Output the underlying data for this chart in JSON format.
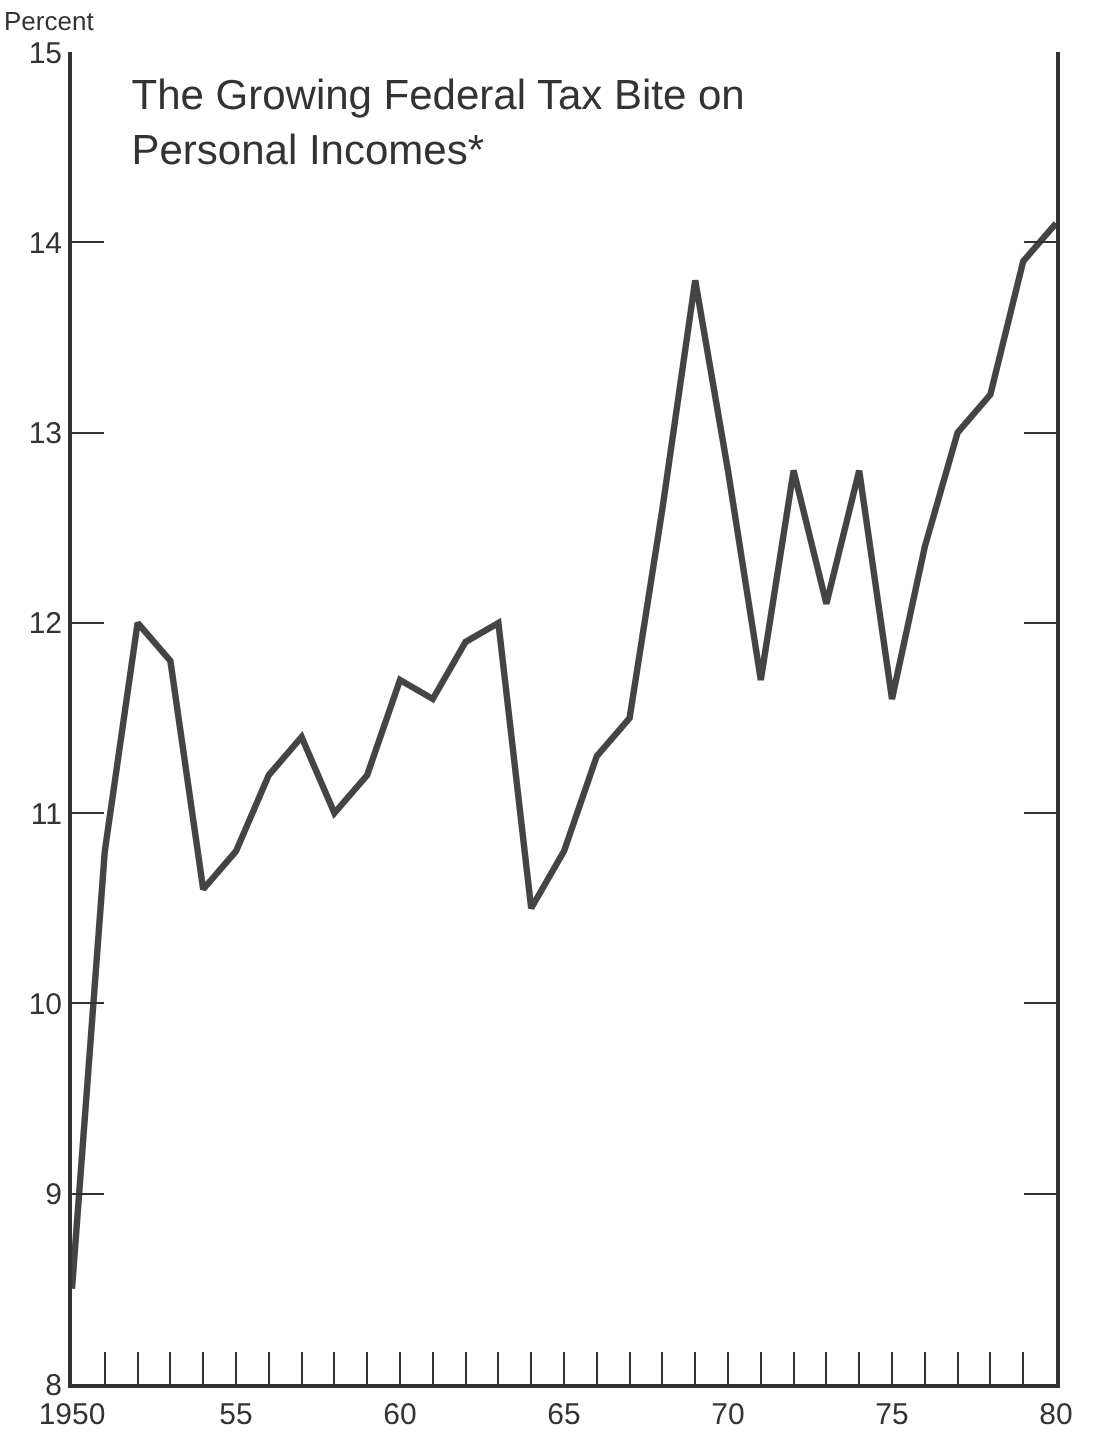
{
  "chart_data": {
    "type": "line",
    "title": "The Growing Federal Tax Bite on\nPersonal Incomes*",
    "ylabel": "Percent",
    "x": [
      1950,
      1951,
      1952,
      1953,
      1954,
      1955,
      1956,
      1957,
      1958,
      1959,
      1960,
      1961,
      1962,
      1963,
      1964,
      1965,
      1966,
      1967,
      1968,
      1969,
      1970,
      1971,
      1972,
      1973,
      1974,
      1975,
      1976,
      1977,
      1978,
      1979,
      1980
    ],
    "series": [
      {
        "color": "#444444",
        "values": [
          8.5,
          10.8,
          12.0,
          11.8,
          10.6,
          10.8,
          11.2,
          11.4,
          11.0,
          11.2,
          11.7,
          11.6,
          11.9,
          12.0,
          10.5,
          10.8,
          11.3,
          11.5,
          12.6,
          13.8,
          12.8,
          11.7,
          12.8,
          12.1,
          12.8,
          11.6,
          12.4,
          13.0,
          13.2,
          13.9,
          14.1
        ]
      }
    ],
    "xlim": [
      1950,
      1980
    ],
    "ylim": [
      8,
      15
    ],
    "xticks": [
      {
        "value": 1950,
        "label": "1950"
      },
      {
        "value": 1951,
        "label": null
      },
      {
        "value": 1952,
        "label": null
      },
      {
        "value": 1953,
        "label": null
      },
      {
        "value": 1954,
        "label": null
      },
      {
        "value": 1955,
        "label": "55"
      },
      {
        "value": 1956,
        "label": null
      },
      {
        "value": 1957,
        "label": null
      },
      {
        "value": 1958,
        "label": null
      },
      {
        "value": 1959,
        "label": null
      },
      {
        "value": 1960,
        "label": "60"
      },
      {
        "value": 1961,
        "label": null
      },
      {
        "value": 1962,
        "label": null
      },
      {
        "value": 1963,
        "label": null
      },
      {
        "value": 1964,
        "label": null
      },
      {
        "value": 1965,
        "label": "65"
      },
      {
        "value": 1966,
        "label": null
      },
      {
        "value": 1967,
        "label": null
      },
      {
        "value": 1968,
        "label": null
      },
      {
        "value": 1969,
        "label": null
      },
      {
        "value": 1970,
        "label": "70"
      },
      {
        "value": 1971,
        "label": null
      },
      {
        "value": 1972,
        "label": null
      },
      {
        "value": 1973,
        "label": null
      },
      {
        "value": 1974,
        "label": null
      },
      {
        "value": 1975,
        "label": "75"
      },
      {
        "value": 1976,
        "label": null
      },
      {
        "value": 1977,
        "label": null
      },
      {
        "value": 1978,
        "label": null
      },
      {
        "value": 1979,
        "label": null
      },
      {
        "value": 1980,
        "label": "80"
      }
    ],
    "yticks": [
      8,
      9,
      10,
      11,
      12,
      13,
      14,
      15
    ],
    "legend": false,
    "marker": "none",
    "line_style": "solid"
  }
}
